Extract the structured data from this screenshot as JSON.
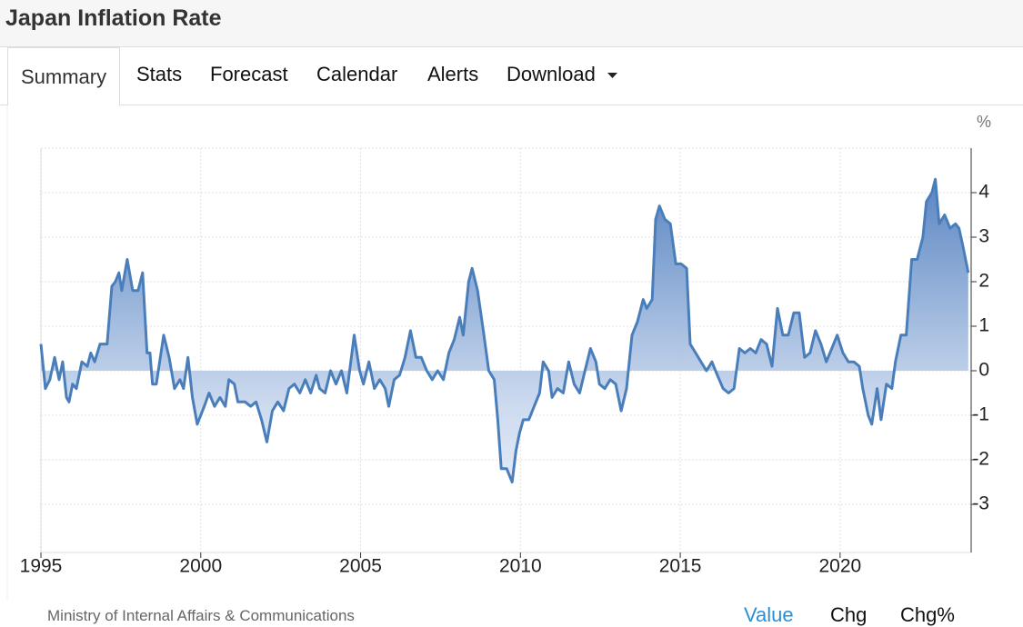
{
  "header": {
    "title": "Japan Inflation Rate"
  },
  "tabs": [
    "Summary",
    "Stats",
    "Forecast",
    "Calendar",
    "Alerts",
    "Download"
  ],
  "chart_data": {
    "type": "line",
    "unit": "%",
    "color": "#4a7ebb",
    "grid": true,
    "xlim": [
      1995,
      2024.1
    ],
    "xticks": [
      1995,
      2000,
      2005,
      2010,
      2015,
      2020
    ],
    "ylim": [
      -4,
      5
    ],
    "yticks": [
      -3,
      -2,
      -1,
      0,
      1,
      2,
      3,
      4
    ],
    "x": [
      1995.0,
      1995.14,
      1995.28,
      1995.43,
      1995.57,
      1995.68,
      1995.8,
      1995.88,
      1995.99,
      1996.11,
      1996.28,
      1996.45,
      1996.56,
      1996.68,
      1996.85,
      1997.07,
      1997.22,
      1997.33,
      1997.44,
      1997.53,
      1997.7,
      1997.87,
      1998.04,
      1998.18,
      1998.32,
      1998.41,
      1998.49,
      1998.61,
      1998.84,
      1999.01,
      1999.18,
      1999.35,
      1999.46,
      1999.6,
      1999.74,
      1999.89,
      2000.11,
      2000.26,
      2000.43,
      2000.6,
      2000.77,
      2000.88,
      2001.05,
      2001.16,
      2001.39,
      2001.56,
      2001.73,
      2001.9,
      2002.07,
      2002.24,
      2002.41,
      2002.59,
      2002.76,
      2002.93,
      2003.1,
      2003.27,
      2003.44,
      2003.61,
      2003.72,
      2003.89,
      2004.06,
      2004.23,
      2004.4,
      2004.57,
      2004.8,
      2004.97,
      2005.09,
      2005.26,
      2005.43,
      2005.6,
      2005.77,
      2005.88,
      2006.05,
      2006.22,
      2006.39,
      2006.56,
      2006.73,
      2006.9,
      2007.07,
      2007.24,
      2007.41,
      2007.59,
      2007.76,
      2007.93,
      2008.1,
      2008.21,
      2008.38,
      2008.49,
      2008.66,
      2008.84,
      2009.01,
      2009.18,
      2009.29,
      2009.4,
      2009.57,
      2009.74,
      2009.86,
      2009.97,
      2010.09,
      2010.26,
      2010.43,
      2010.6,
      2010.71,
      2010.88,
      2010.99,
      2011.16,
      2011.34,
      2011.51,
      2011.68,
      2011.85,
      2012.02,
      2012.19,
      2012.36,
      2012.47,
      2012.64,
      2012.81,
      2012.98,
      2013.15,
      2013.32,
      2013.49,
      2013.66,
      2013.84,
      2013.95,
      2014.12,
      2014.23,
      2014.35,
      2014.52,
      2014.69,
      2014.86,
      2015.03,
      2015.2,
      2015.31,
      2015.48,
      2015.65,
      2015.82,
      2015.99,
      2016.16,
      2016.34,
      2016.51,
      2016.68,
      2016.85,
      2017.02,
      2017.19,
      2017.36,
      2017.53,
      2017.7,
      2017.87,
      2018.04,
      2018.21,
      2018.38,
      2018.55,
      2018.72,
      2018.89,
      2019.06,
      2019.23,
      2019.4,
      2019.57,
      2019.74,
      2019.91,
      2020.09,
      2020.26,
      2020.43,
      2020.6,
      2020.71,
      2020.88,
      2020.99,
      2021.16,
      2021.28,
      2021.45,
      2021.62,
      2021.73,
      2021.9,
      2022.07,
      2022.24,
      2022.41,
      2022.59,
      2022.7,
      2022.87,
      2022.98,
      2023.1,
      2023.27,
      2023.44,
      2023.61,
      2023.72,
      2023.84,
      2024.01
    ],
    "values": [
      0.6,
      -0.4,
      -0.2,
      0.3,
      -0.2,
      0.2,
      -0.6,
      -0.7,
      -0.3,
      -0.4,
      0.2,
      0.1,
      0.4,
      0.2,
      0.6,
      0.6,
      1.9,
      2.0,
      2.2,
      1.8,
      2.5,
      1.8,
      1.8,
      2.2,
      0.4,
      0.4,
      -0.3,
      -0.3,
      0.8,
      0.3,
      -0.4,
      -0.2,
      -0.4,
      0.3,
      -0.6,
      -1.2,
      -0.8,
      -0.5,
      -0.8,
      -0.6,
      -0.8,
      -0.2,
      -0.3,
      -0.7,
      -0.7,
      -0.8,
      -0.7,
      -1.1,
      -1.6,
      -0.9,
      -0.7,
      -0.9,
      -0.4,
      -0.3,
      -0.5,
      -0.2,
      -0.5,
      -0.1,
      -0.4,
      -0.5,
      0.0,
      -0.3,
      0.0,
      -0.5,
      0.8,
      0.0,
      -0.3,
      0.2,
      -0.4,
      -0.2,
      -0.4,
      -0.8,
      -0.2,
      -0.1,
      0.3,
      0.9,
      0.3,
      0.3,
      0.0,
      -0.2,
      0.0,
      -0.2,
      0.4,
      0.7,
      1.2,
      0.8,
      2.0,
      2.3,
      1.8,
      0.9,
      0.0,
      -0.2,
      -1.1,
      -2.2,
      -2.2,
      -2.5,
      -1.8,
      -1.4,
      -1.1,
      -1.1,
      -0.8,
      -0.5,
      0.2,
      0.0,
      -0.6,
      -0.4,
      -0.5,
      0.2,
      -0.3,
      -0.5,
      0.0,
      0.5,
      0.2,
      -0.3,
      -0.4,
      -0.2,
      -0.3,
      -0.9,
      -0.4,
      0.8,
      1.1,
      1.6,
      1.4,
      1.6,
      3.4,
      3.7,
      3.4,
      3.3,
      2.4,
      2.4,
      2.3,
      0.6,
      0.4,
      0.2,
      0.0,
      0.2,
      -0.1,
      -0.4,
      -0.5,
      -0.4,
      0.5,
      0.4,
      0.5,
      0.4,
      0.7,
      0.6,
      0.1,
      1.4,
      0.8,
      0.8,
      1.3,
      1.3,
      0.3,
      0.4,
      0.9,
      0.6,
      0.2,
      0.5,
      0.8,
      0.4,
      0.2,
      0.2,
      0.1,
      -0.4,
      -1.0,
      -1.2,
      -0.4,
      -1.1,
      -0.3,
      -0.4,
      0.2,
      0.8,
      0.8,
      2.5,
      2.5,
      3.0,
      3.8,
      4.0,
      4.3,
      3.3,
      3.5,
      3.2,
      3.3,
      3.2,
      2.8,
      2.2
    ]
  },
  "footer": {
    "source": "Ministry of Internal Affairs & Communications",
    "toggles": [
      "Value",
      "Chg",
      "Chg%"
    ]
  }
}
